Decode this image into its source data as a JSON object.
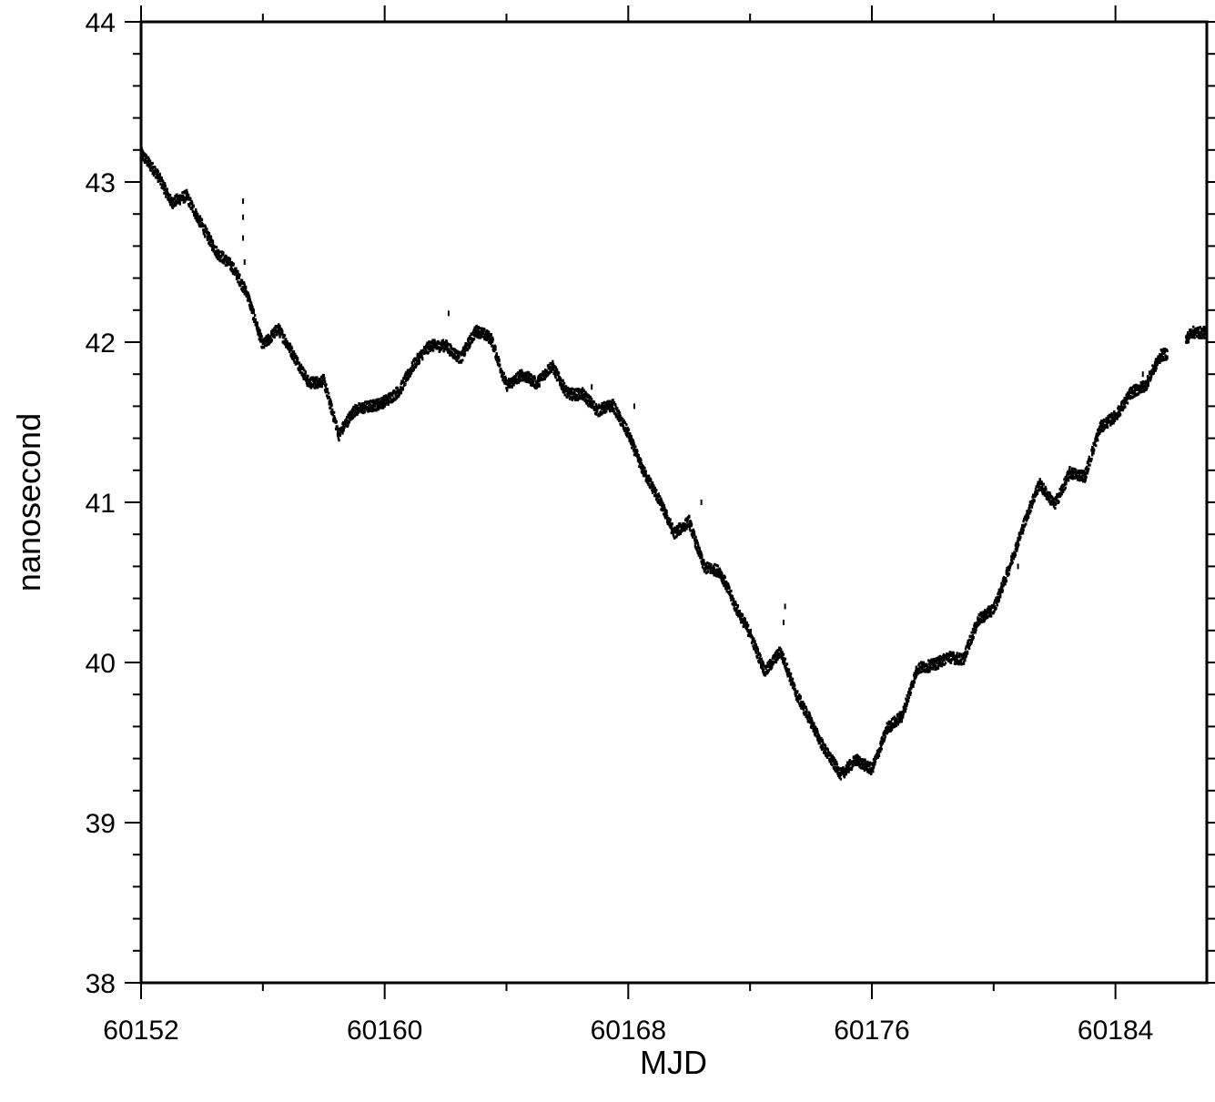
{
  "chart_data": {
    "type": "scatter",
    "title": "",
    "xlabel": "MJD",
    "ylabel": "nanosecond",
    "xlim": [
      60152,
      60187
    ],
    "ylim": [
      38,
      44
    ],
    "x_ticks": [
      60152,
      60160,
      60168,
      60176,
      60184
    ],
    "x_minor_step": 4,
    "y_ticks": [
      38,
      39,
      40,
      41,
      42,
      43,
      44
    ],
    "y_minor_step": 0.2,
    "grid": false,
    "legend": "none",
    "marker_color": "#000000",
    "series": [
      {
        "trend_x": [
          60152.0,
          60152.5,
          60153.0,
          60153.5,
          60154.0,
          60154.5,
          60155.0,
          60155.5,
          60156.0,
          60156.5,
          60157.0,
          60157.5,
          60158.0,
          60158.5,
          60159.0,
          60159.5,
          60160.0,
          60160.5,
          60161.0,
          60161.5,
          60162.0,
          60162.5,
          60163.0,
          60163.5,
          60164.0,
          60164.5,
          60165.0,
          60165.5,
          60166.0,
          60166.5,
          60167.0,
          60167.5,
          60168.0,
          60168.5,
          60169.0,
          60169.5,
          60170.0,
          60170.5,
          60171.0,
          60171.5,
          60172.0,
          60172.5,
          60173.0,
          60173.5,
          60174.0,
          60174.5,
          60175.0,
          60175.5,
          60176.0,
          60176.5,
          60177.0,
          60177.5,
          60178.0,
          60178.5,
          60179.0,
          60179.5,
          60180.0,
          60180.5,
          60181.0,
          60181.5,
          60182.0,
          60182.5,
          60183.0,
          60183.5,
          60184.0,
          60184.5,
          60185.0,
          60185.5,
          60186.0,
          60186.5,
          60187.0
        ],
        "trend_y": [
          43.2,
          43.05,
          42.85,
          42.92,
          42.75,
          42.55,
          42.45,
          42.3,
          42.0,
          42.08,
          41.9,
          41.75,
          41.78,
          41.42,
          41.55,
          41.6,
          41.65,
          41.7,
          41.85,
          41.98,
          42.0,
          41.9,
          42.05,
          42.02,
          41.75,
          41.8,
          41.72,
          41.85,
          41.7,
          41.68,
          41.55,
          41.6,
          41.45,
          41.2,
          41.0,
          40.8,
          40.9,
          40.6,
          40.55,
          40.35,
          40.2,
          39.95,
          40.05,
          39.8,
          39.65,
          39.45,
          39.28,
          39.38,
          39.35,
          39.6,
          39.65,
          39.95,
          40.0,
          40.05,
          40.0,
          40.25,
          40.35,
          40.6,
          40.85,
          41.1,
          41.0,
          41.2,
          41.15,
          41.45,
          41.55,
          41.7,
          41.72,
          41.9,
          41.95,
          42.08,
          42.05
        ],
        "gap_after": [
          [
            60185.7,
            60186.3
          ]
        ],
        "sample_step_days": 0.02,
        "noise_amplitude_ns": 0.035,
        "spikes": [
          {
            "x": 60155.35,
            "y": 42.88
          },
          {
            "x": 60155.35,
            "y": 42.78
          },
          {
            "x": 60155.35,
            "y": 42.65
          },
          {
            "x": 60155.4,
            "y": 42.5
          },
          {
            "x": 60162.1,
            "y": 42.18
          },
          {
            "x": 60166.8,
            "y": 41.72
          },
          {
            "x": 60168.2,
            "y": 41.6
          },
          {
            "x": 60170.4,
            "y": 41.0
          },
          {
            "x": 60173.15,
            "y": 40.35
          },
          {
            "x": 60173.1,
            "y": 40.25
          },
          {
            "x": 60180.8,
            "y": 40.6
          },
          {
            "x": 60184.9,
            "y": 41.8
          }
        ]
      }
    ]
  }
}
